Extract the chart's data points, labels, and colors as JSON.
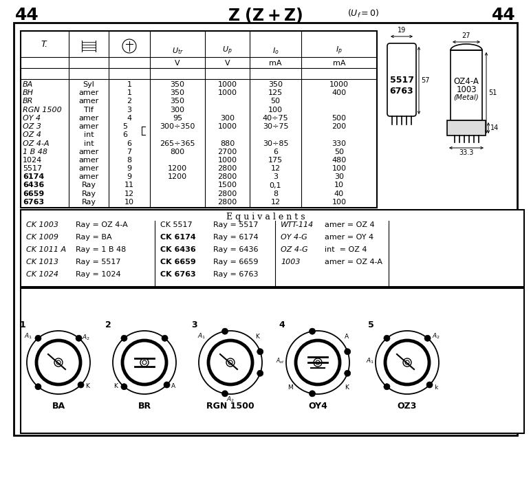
{
  "page_number": "44",
  "bg_color": "#ffffff",
  "table_rows": [
    [
      "BA",
      "Syl",
      "1",
      "350",
      "1000",
      "350",
      "1000",
      false,
      true
    ],
    [
      "BH",
      "amer",
      "1",
      "350",
      "1000",
      "125",
      "400",
      false,
      true
    ],
    [
      "BR",
      "amer",
      "2",
      "350",
      "",
      "50",
      "",
      false,
      true
    ],
    [
      "RGN 1500",
      "Tlf",
      "3",
      "300",
      "",
      "100",
      "",
      false,
      true
    ],
    [
      "OY 4",
      "amer",
      "4",
      "95",
      "300",
      "40÷75",
      "500",
      false,
      true
    ],
    [
      "OZ 3",
      "amer",
      "5",
      "300÷350",
      "1000",
      "30÷75",
      "200",
      false,
      true
    ],
    [
      "OZ 4",
      "int",
      "6",
      "",
      "",
      "",
      "",
      false,
      true
    ],
    [
      "OZ 4-A",
      "int",
      "6",
      "265÷365",
      "880",
      "30÷85",
      "330",
      false,
      true
    ],
    [
      "1 B 48",
      "amer",
      "7",
      "800",
      "2700",
      "6",
      "50",
      false,
      true
    ],
    [
      "1024",
      "amer",
      "8",
      "",
      "1000",
      "175",
      "480",
      false,
      false
    ],
    [
      "5517",
      "amer",
      "9",
      "1200",
      "2800",
      "12",
      "100",
      false,
      false
    ],
    [
      "6174",
      "amer",
      "9",
      "1200",
      "2800",
      "3",
      "30",
      true,
      false
    ],
    [
      "6436",
      "Ray",
      "11",
      "",
      "1500",
      "0,1",
      "10",
      true,
      false
    ],
    [
      "6659",
      "Ray",
      "12",
      "",
      "2800",
      "8",
      "40",
      true,
      false
    ],
    [
      "6763",
      "Ray",
      "10",
      "",
      "2800",
      "12",
      "100",
      true,
      false
    ]
  ],
  "equivalents_col1": [
    [
      "CK 1003",
      "Ray = OZ 4-A"
    ],
    [
      "CK 1009",
      "Ray = BA"
    ],
    [
      "CK 1011 A",
      "Ray = 1 B 48"
    ],
    [
      "CK 1013",
      "Ray = 5517"
    ],
    [
      "CK 1024",
      "Ray = 1024"
    ]
  ],
  "equivalents_col2": [
    [
      "CK 5517",
      "Ray = 5517",
      false
    ],
    [
      "CK 6174",
      "Ray = 6174",
      true
    ],
    [
      "CK 6436",
      "Ray = 6436",
      true
    ],
    [
      "CK 6659",
      "Ray = 6659",
      true
    ],
    [
      "CK 6763",
      "Ray = 6763",
      true
    ]
  ],
  "equivalents_col3": [
    [
      "WTT-114",
      "amer = OZ 4"
    ],
    [
      "OY 4-G",
      "amer = OY 4"
    ],
    [
      "OZ 4-G",
      "int  = OZ 4"
    ],
    [
      "1003",
      "amer = OZ 4-A"
    ],
    [
      "",
      ""
    ]
  ],
  "pin_diagrams": [
    "BA",
    "BR",
    "RGN 1500",
    "OY4",
    "OZ3"
  ],
  "pin_numbers": [
    "1",
    "2",
    "3",
    "4",
    "5"
  ]
}
